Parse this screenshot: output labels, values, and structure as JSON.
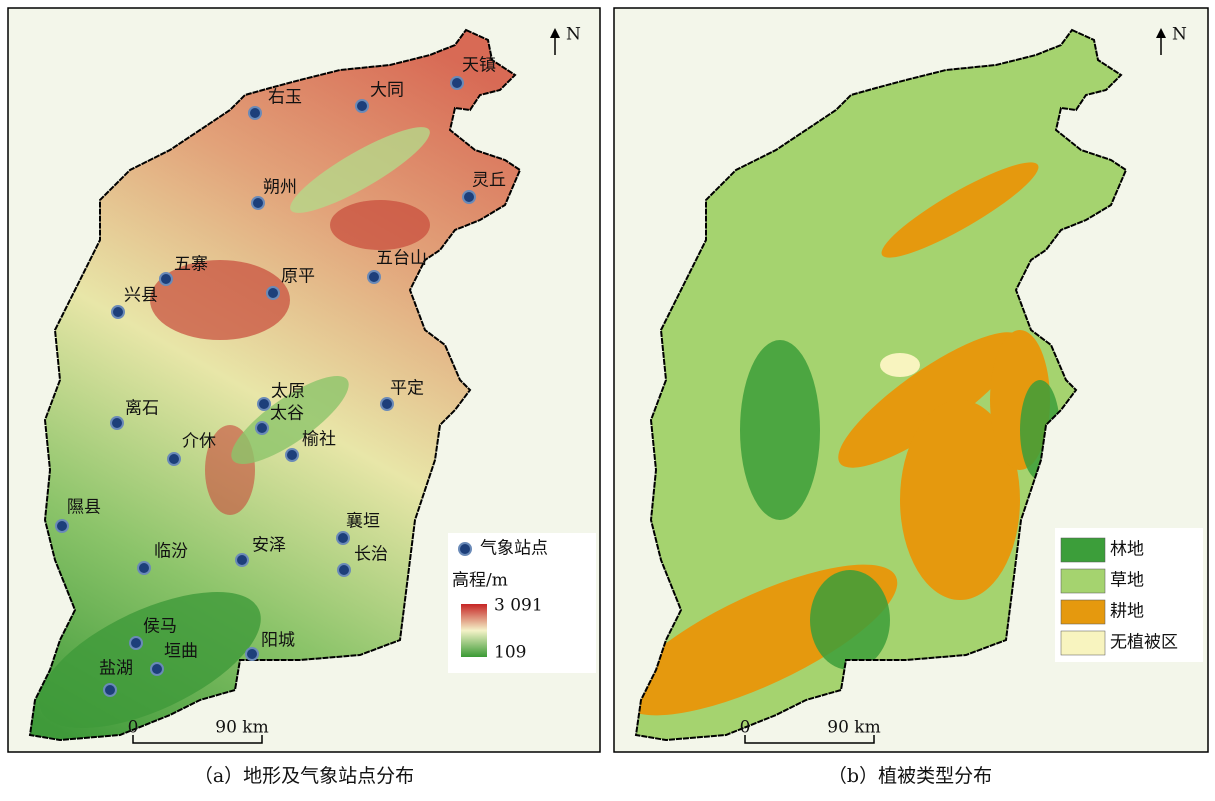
{
  "panel_a": {
    "stations": [
      "右玉",
      "大同",
      "天镇",
      "灵丘",
      "朔州",
      "五寨",
      "原平",
      "五台山",
      "兴县",
      "太原",
      "太谷",
      "平定",
      "离石",
      "介休",
      "榆社",
      "隰县",
      "襄垣",
      "长治",
      "临汾",
      "安泽",
      "侯马",
      "垣曲",
      "盐湖",
      "阳城"
    ],
    "legend": {
      "station": "气象站点",
      "elevation_title": "高程/m",
      "elevation_max": {
        "value": 3091,
        "label": "3 091"
      },
      "elevation_min": 109
    },
    "scale": {
      "zero": 0,
      "length": {
        "value": 90,
        "label": "90 km"
      }
    },
    "north": "N",
    "caption": "（a）地形及气象站点分布"
  },
  "panel_b": {
    "legend": [
      {
        "name": "林地",
        "color": "#3c9e3a"
      },
      {
        "name": "草地",
        "color": "#a5d36f"
      },
      {
        "name": "耕地",
        "color": "#e5990e"
      },
      {
        "name": "无植被区",
        "color": "#f8f4bf"
      }
    ],
    "scale": {
      "zero": 0,
      "length": {
        "value": 90,
        "label": "90 km"
      }
    },
    "north": "N",
    "caption": "（b）植被类型分布"
  }
}
